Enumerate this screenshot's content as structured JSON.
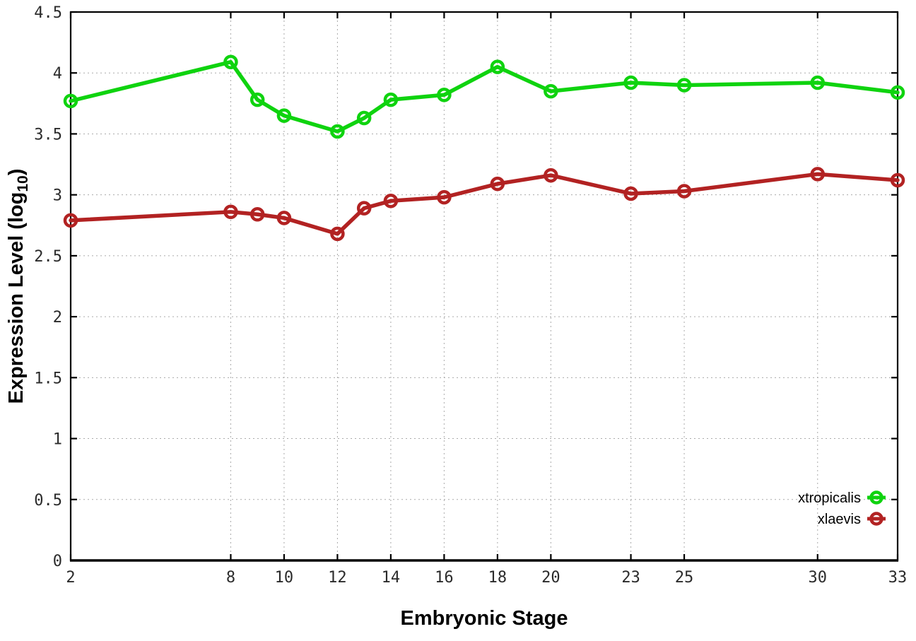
{
  "chart_data": {
    "type": "line",
    "title": "",
    "xlabel": "Embryonic Stage",
    "ylabel": "Expression Level (log10)",
    "ylabel_parts": {
      "main": "Expression Level (log",
      "subscript": "10",
      "suffix": ")"
    },
    "x": [
      2,
      8,
      9,
      10,
      12,
      13,
      14,
      16,
      18,
      20,
      23,
      25,
      30,
      33
    ],
    "xlim": [
      2,
      33
    ],
    "ylim": [
      0,
      4.5
    ],
    "xticks": {
      "values": [
        2,
        8,
        10,
        12,
        14,
        16,
        18,
        20,
        23,
        25,
        30,
        33
      ],
      "labels": [
        "2",
        "8",
        "10",
        "12",
        "14",
        "16",
        "18",
        "20",
        "23",
        "25",
        "30",
        "33"
      ]
    },
    "yticks": {
      "values": [
        0,
        0.5,
        1,
        1.5,
        2,
        2.5,
        3,
        3.5,
        4,
        4.5
      ],
      "labels": [
        "0",
        "0.5",
        "1",
        "1.5",
        "2",
        "2.5",
        "3",
        "3.5",
        "4",
        "4.5"
      ]
    },
    "grid": true,
    "legend_position": "bottom-right",
    "series": [
      {
        "name": "xtropicalis",
        "color": "#0fd30f",
        "marker": "open-circle",
        "values": [
          3.77,
          4.09,
          3.78,
          3.65,
          3.52,
          3.63,
          3.78,
          3.82,
          4.05,
          3.85,
          3.92,
          3.9,
          3.92,
          3.84
        ]
      },
      {
        "name": "xlaevis",
        "color": "#b22222",
        "marker": "open-circle",
        "values": [
          2.79,
          2.86,
          2.84,
          2.81,
          2.68,
          2.89,
          2.95,
          2.98,
          3.09,
          3.16,
          3.01,
          3.03,
          3.17,
          3.12
        ]
      }
    ],
    "colors": {
      "grid": "#aaaaaa",
      "axis": "#000000",
      "background": "#ffffff"
    }
  }
}
